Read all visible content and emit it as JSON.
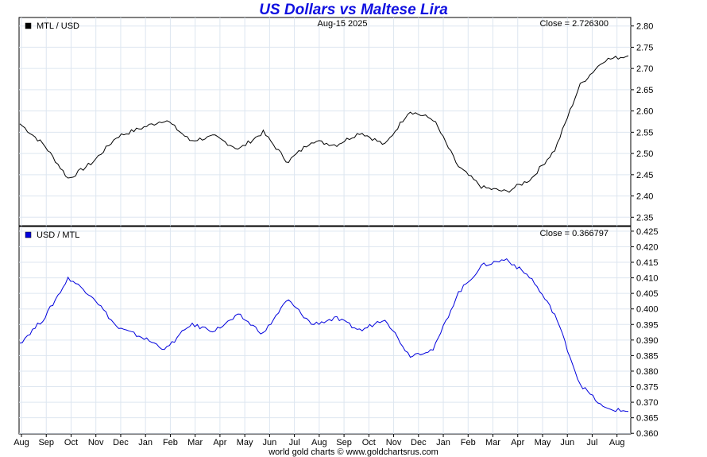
{
  "title": "US Dollars vs Maltese Lira",
  "footer": "world gold charts © www.goldchartsrus.com",
  "chart_data": [
    {
      "type": "line",
      "series_name": "MTL / USD",
      "date_label": "Aug-15  2025",
      "close_label": "Close = 2.726300",
      "color": "#000000",
      "y_ticks": [
        "2.80",
        "2.75",
        "2.70",
        "2.65",
        "2.60",
        "2.55",
        "2.50",
        "2.45",
        "2.40",
        "2.35"
      ],
      "ylim": [
        2.33,
        2.82
      ],
      "x": [
        0,
        1,
        2,
        3,
        4,
        5,
        6,
        7,
        8,
        9,
        10,
        11,
        12,
        13,
        14,
        15,
        16,
        17,
        18,
        19,
        20,
        21,
        22,
        23,
        24,
        25
      ],
      "values": [
        2.57,
        2.52,
        2.44,
        2.48,
        2.54,
        2.56,
        2.58,
        2.53,
        2.54,
        2.51,
        2.55,
        2.48,
        2.53,
        2.52,
        2.55,
        2.52,
        2.6,
        2.58,
        2.47,
        2.42,
        2.41,
        2.44,
        2.51,
        2.66,
        2.72,
        2.73
      ]
    },
    {
      "type": "line",
      "series_name": "USD / MTL",
      "close_label": "Close = 0.366797",
      "color": "#0000dd",
      "y_ticks": [
        "0.425",
        "0.420",
        "0.415",
        "0.410",
        "0.405",
        "0.400",
        "0.395",
        "0.390",
        "0.385",
        "0.380",
        "0.375",
        "0.370",
        "0.365",
        "0.360"
      ],
      "ylim": [
        0.3598,
        0.4265
      ],
      "x": [
        0,
        1,
        2,
        3,
        4,
        5,
        6,
        7,
        8,
        9,
        10,
        11,
        12,
        13,
        14,
        15,
        16,
        17,
        18,
        19,
        20,
        21,
        22,
        23,
        24,
        25
      ],
      "values": [
        0.389,
        0.397,
        0.41,
        0.404,
        0.394,
        0.391,
        0.387,
        0.395,
        0.393,
        0.398,
        0.392,
        0.403,
        0.395,
        0.397,
        0.393,
        0.397,
        0.385,
        0.387,
        0.405,
        0.414,
        0.416,
        0.41,
        0.398,
        0.376,
        0.368,
        0.367
      ]
    }
  ],
  "x_ticks": [
    "Aug",
    "Sep",
    "Oct",
    "Nov",
    "Dec",
    "Jan",
    "Feb",
    "Mar",
    "Apr",
    "May",
    "Jun",
    "Jul",
    "Aug",
    "Sep",
    "Oct",
    "Nov",
    "Dec",
    "Jan",
    "Feb",
    "Mar",
    "Apr",
    "May",
    "Jun",
    "Jul",
    "Aug"
  ]
}
